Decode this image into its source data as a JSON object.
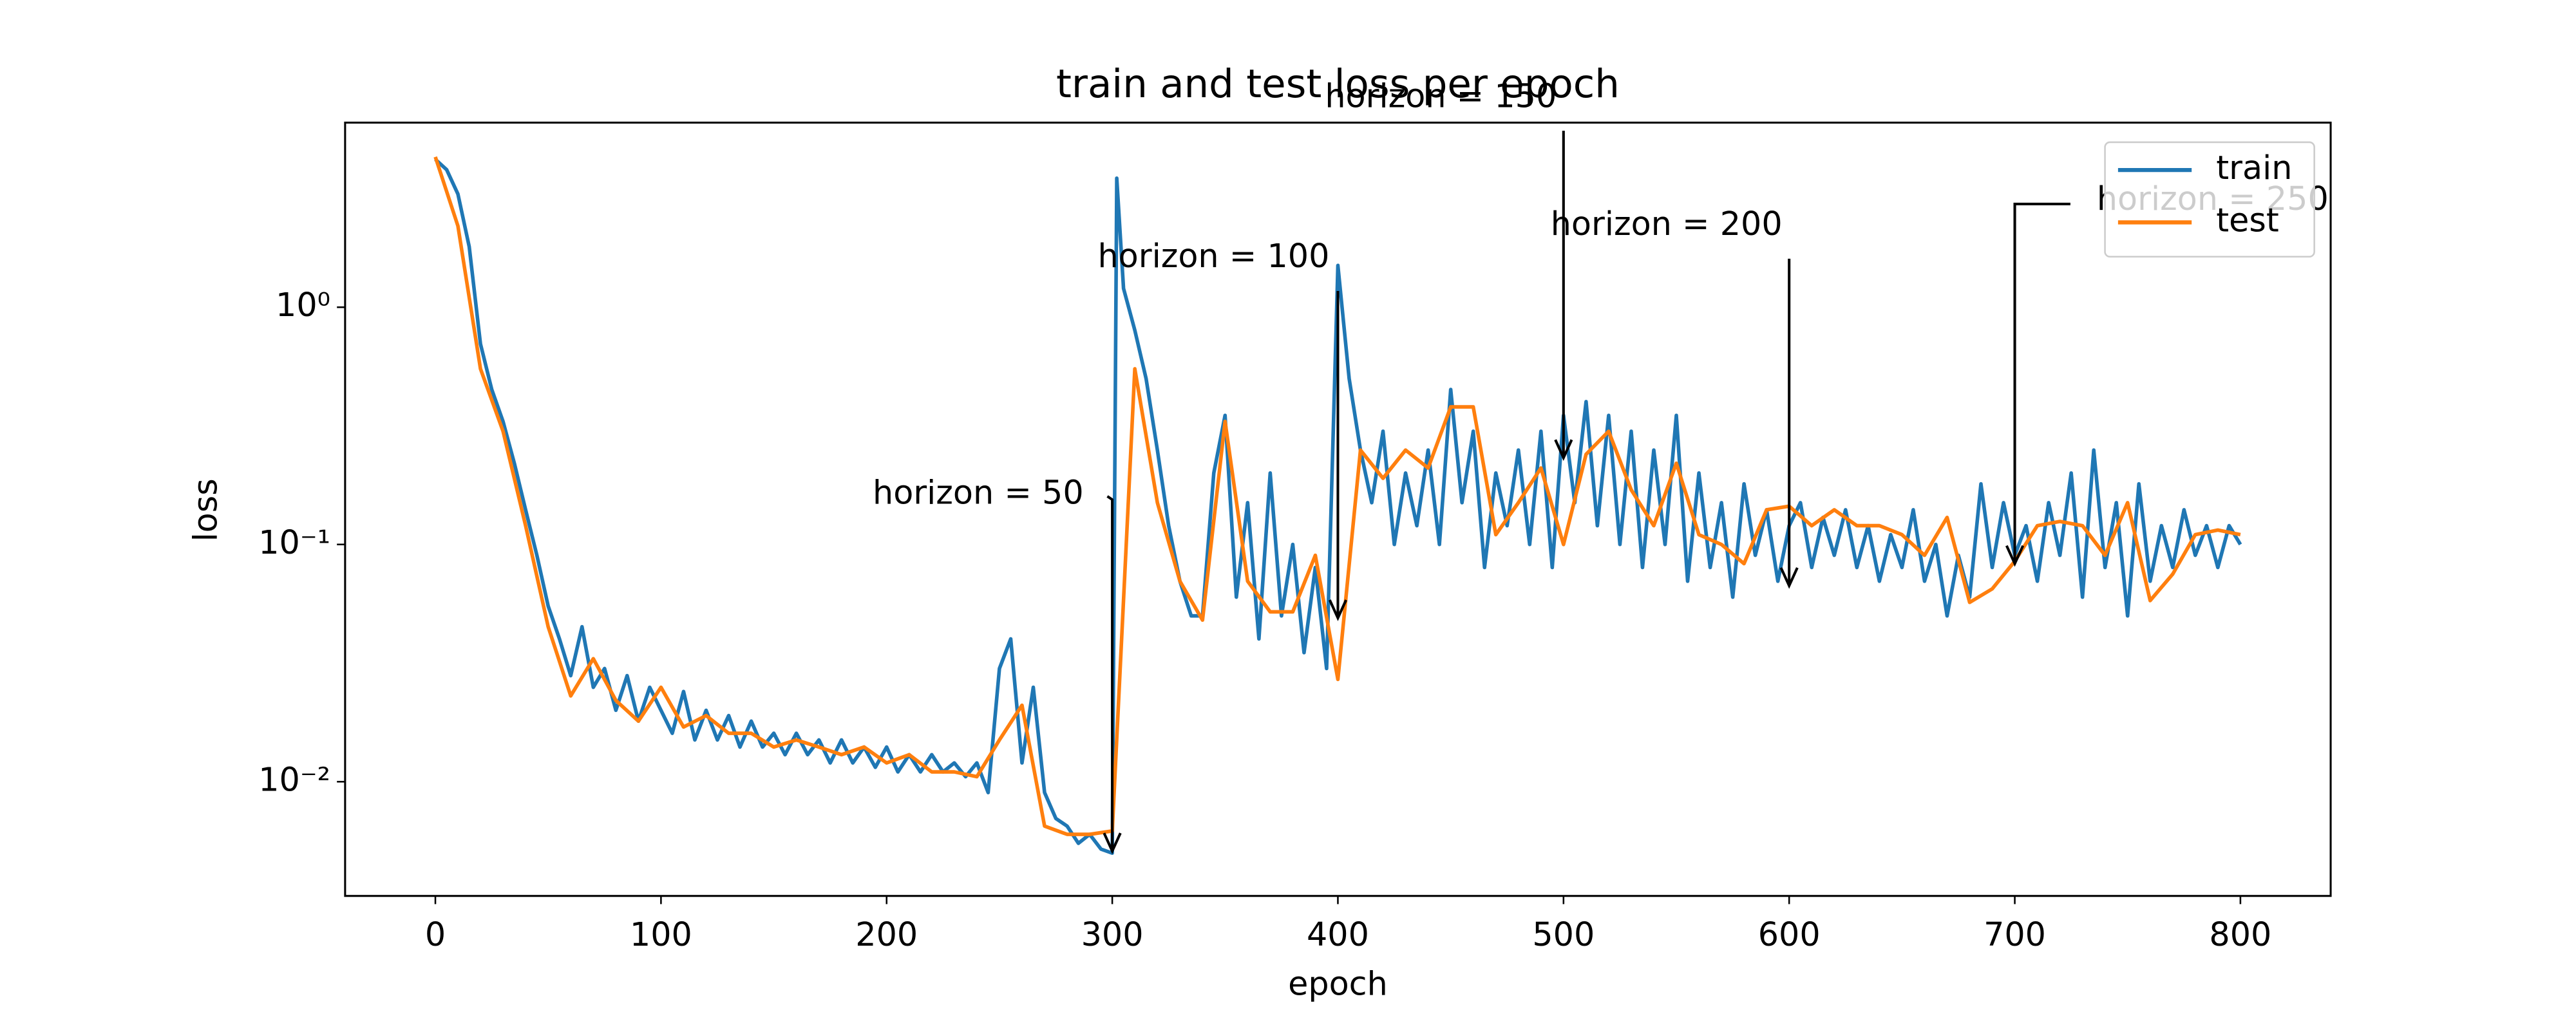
{
  "chart_data": {
    "type": "line",
    "title": "train and test loss per epoch",
    "xlabel": "epoch",
    "ylabel": "loss",
    "log_y": true,
    "xlim": [
      -40,
      840
    ],
    "xticks": [
      0,
      100,
      200,
      300,
      400,
      500,
      600,
      700,
      800
    ],
    "ylim": [
      0.0033,
      6
    ],
    "yticks": [
      {
        "value": 0.01,
        "label": "10⁻²"
      },
      {
        "value": 0.1,
        "label": "10⁻¹"
      },
      {
        "value": 1,
        "label": "10⁰"
      }
    ],
    "legend": "upper right",
    "series": [
      {
        "name": "train",
        "color": "#1f77b4",
        "x": [
          0,
          5,
          10,
          15,
          20,
          25,
          30,
          35,
          40,
          45,
          50,
          55,
          60,
          65,
          70,
          75,
          80,
          85,
          90,
          95,
          100,
          105,
          110,
          115,
          120,
          125,
          130,
          135,
          140,
          145,
          150,
          155,
          160,
          165,
          170,
          175,
          180,
          185,
          190,
          195,
          200,
          205,
          210,
          215,
          220,
          225,
          230,
          235,
          240,
          245,
          250,
          255,
          260,
          265,
          270,
          275,
          280,
          285,
          290,
          295,
          300,
          302,
          305,
          310,
          315,
          320,
          325,
          330,
          335,
          340,
          345,
          350,
          355,
          360,
          365,
          370,
          375,
          380,
          385,
          390,
          395,
          400,
          405,
          410,
          415,
          420,
          425,
          430,
          435,
          440,
          445,
          450,
          455,
          460,
          465,
          470,
          475,
          480,
          485,
          490,
          495,
          500,
          505,
          510,
          515,
          520,
          525,
          530,
          535,
          540,
          545,
          550,
          555,
          560,
          565,
          570,
          575,
          580,
          585,
          590,
          595,
          600,
          605,
          610,
          615,
          620,
          625,
          630,
          635,
          640,
          645,
          650,
          655,
          660,
          665,
          670,
          675,
          680,
          685,
          690,
          695,
          700,
          705,
          710,
          715,
          720,
          725,
          730,
          735,
          740,
          745,
          750,
          755,
          760,
          765,
          770,
          775,
          780,
          785,
          790,
          795,
          800
        ],
        "values": [
          4.2,
          3.8,
          3.0,
          1.8,
          0.7,
          0.45,
          0.33,
          0.22,
          0.14,
          0.09,
          0.055,
          0.04,
          0.028,
          0.045,
          0.025,
          0.03,
          0.02,
          0.028,
          0.018,
          0.025,
          0.02,
          0.016,
          0.024,
          0.015,
          0.02,
          0.015,
          0.019,
          0.014,
          0.018,
          0.014,
          0.016,
          0.013,
          0.016,
          0.013,
          0.015,
          0.012,
          0.015,
          0.012,
          0.014,
          0.0115,
          0.014,
          0.011,
          0.013,
          0.011,
          0.013,
          0.011,
          0.012,
          0.0105,
          0.012,
          0.009,
          0.03,
          0.04,
          0.012,
          0.025,
          0.009,
          0.007,
          0.0065,
          0.0055,
          0.006,
          0.0052,
          0.005,
          3.5,
          1.2,
          0.8,
          0.5,
          0.25,
          0.12,
          0.07,
          0.05,
          0.05,
          0.2,
          0.35,
          0.06,
          0.15,
          0.04,
          0.2,
          0.05,
          0.1,
          0.035,
          0.08,
          0.03,
          1.5,
          0.5,
          0.25,
          0.15,
          0.3,
          0.1,
          0.2,
          0.12,
          0.25,
          0.1,
          0.45,
          0.15,
          0.3,
          0.08,
          0.2,
          0.12,
          0.25,
          0.1,
          0.3,
          0.08,
          0.35,
          0.15,
          0.4,
          0.12,
          0.35,
          0.1,
          0.3,
          0.08,
          0.25,
          0.1,
          0.35,
          0.07,
          0.2,
          0.08,
          0.15,
          0.06,
          0.18,
          0.09,
          0.14,
          0.07,
          0.12,
          0.15,
          0.08,
          0.13,
          0.09,
          0.14,
          0.08,
          0.12,
          0.07,
          0.11,
          0.08,
          0.14,
          0.07,
          0.1,
          0.05,
          0.09,
          0.06,
          0.18,
          0.08,
          0.15,
          0.09,
          0.12,
          0.07,
          0.15,
          0.09,
          0.2,
          0.06,
          0.25,
          0.08,
          0.15,
          0.05,
          0.18,
          0.07,
          0.12,
          0.08,
          0.14,
          0.09,
          0.12,
          0.08,
          0.12,
          0.1
        ]
      },
      {
        "name": "test",
        "color": "#ff7f0e",
        "x": [
          0,
          10,
          20,
          30,
          40,
          50,
          60,
          70,
          80,
          90,
          100,
          110,
          120,
          130,
          140,
          150,
          160,
          170,
          180,
          190,
          200,
          210,
          220,
          230,
          240,
          250,
          260,
          270,
          280,
          290,
          300,
          310,
          320,
          330,
          340,
          350,
          360,
          370,
          380,
          390,
          400,
          410,
          420,
          430,
          440,
          450,
          460,
          470,
          480,
          490,
          500,
          510,
          520,
          530,
          540,
          550,
          560,
          570,
          580,
          590,
          600,
          610,
          620,
          630,
          640,
          650,
          660,
          670,
          680,
          690,
          700,
          710,
          720,
          730,
          740,
          750,
          760,
          770,
          780,
          790,
          800
        ],
        "values": [
          4.3,
          2.2,
          0.55,
          0.3,
          0.12,
          0.045,
          0.023,
          0.033,
          0.022,
          0.018,
          0.025,
          0.017,
          0.019,
          0.016,
          0.016,
          0.014,
          0.015,
          0.014,
          0.013,
          0.014,
          0.012,
          0.013,
          0.011,
          0.011,
          0.0105,
          0.015,
          0.021,
          0.0065,
          0.006,
          0.006,
          0.0062,
          0.55,
          0.15,
          0.07,
          0.048,
          0.33,
          0.07,
          0.052,
          0.052,
          0.09,
          0.027,
          0.25,
          0.19,
          0.25,
          0.21,
          0.38,
          0.38,
          0.11,
          0.15,
          0.21,
          0.1,
          0.24,
          0.3,
          0.17,
          0.12,
          0.22,
          0.11,
          0.1,
          0.083,
          0.14,
          0.145,
          0.12,
          0.14,
          0.12,
          0.12,
          0.11,
          0.09,
          0.13,
          0.057,
          0.065,
          0.085,
          0.12,
          0.125,
          0.12,
          0.09,
          0.15,
          0.058,
          0.075,
          0.11,
          0.115,
          0.11
        ]
      }
    ],
    "annotations": [
      {
        "text": "horizon = 50",
        "x": 300,
        "y": 0.0051
      },
      {
        "text": "horizon = 100",
        "x": 400,
        "y": 0.049
      },
      {
        "text": "horizon = 150",
        "x": 500,
        "y": 0.232
      },
      {
        "text": "horizon = 200",
        "x": 600,
        "y": 0.067
      },
      {
        "text": "horizon = 250",
        "x": 700,
        "y": 0.083
      }
    ]
  }
}
